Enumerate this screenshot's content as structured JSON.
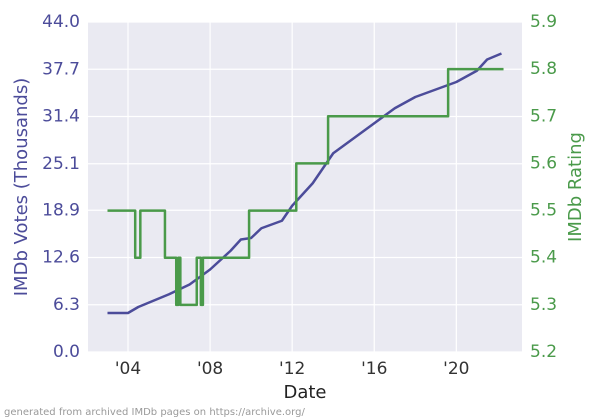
{
  "chart_data": {
    "type": "line",
    "xlabel": "Date",
    "ylabel": "IMDb Votes (Thousands)",
    "y2label": "IMDb Rating",
    "footnote": "generated from archived IMDb pages on https://archive.org/",
    "xlim": [
      2002.05,
      2023.2
    ],
    "xticks": [
      {
        "value": 2004,
        "label": "'04"
      },
      {
        "value": 2008,
        "label": "'08"
      },
      {
        "value": 2012,
        "label": "'12"
      },
      {
        "value": 2016,
        "label": "'16"
      },
      {
        "value": 2020,
        "label": "'20"
      }
    ],
    "ylim": [
      0,
      44
    ],
    "yticks": [
      {
        "value": 0,
        "label": "0.0"
      },
      6.3,
      12.6,
      18.9,
      25.1,
      31.4,
      37.7,
      {
        "value": 44,
        "label": "44.0"
      }
    ],
    "y2lim": [
      5.2,
      5.9
    ],
    "y2ticks": [
      5.2,
      5.3,
      5.4,
      5.5,
      5.6,
      5.7,
      5.8,
      5.9
    ],
    "grid": true,
    "series": [
      {
        "color": "#4c4c9a",
        "axis": "y",
        "x": [
          2003.0,
          2004.0,
          2004.5,
          2006.0,
          2007.0,
          2008.0,
          2009.0,
          2009.5,
          2010.0,
          2010.5,
          2011.5,
          2012.0,
          2012.5,
          2013.0,
          2013.5,
          2014.0,
          2015.0,
          2016.0,
          2017.0,
          2018.0,
          2019.0,
          2020.0,
          2021.0,
          2021.5,
          2022.2
        ],
        "values": [
          5.2,
          5.2,
          6.0,
          7.7,
          9.0,
          11.0,
          13.5,
          15.0,
          15.2,
          16.5,
          17.5,
          19.5,
          21.0,
          22.5,
          24.5,
          26.5,
          28.5,
          30.5,
          32.5,
          34.0,
          35.0,
          36.0,
          37.5,
          39.0,
          39.8
        ]
      },
      {
        "color": "#4a9a4a",
        "axis": "y2",
        "x": [
          2003,
          2004.35,
          2004.35,
          2004.6,
          2004.6,
          2005.8,
          2005.8,
          2006.35,
          2006.35,
          2006.45,
          2006.45,
          2006.55,
          2006.55,
          2007.35,
          2007.35,
          2007.55,
          2007.55,
          2007.65,
          2007.65,
          2009.9,
          2009.9,
          2012.2,
          2012.2,
          2013.75,
          2013.75,
          2019.6,
          2019.6,
          2022.3
        ],
        "values": [
          5.5,
          5.5,
          5.4,
          5.4,
          5.5,
          5.5,
          5.4,
          5.4,
          5.3,
          5.3,
          5.4,
          5.4,
          5.3,
          5.3,
          5.4,
          5.4,
          5.3,
          5.3,
          5.4,
          5.4,
          5.5,
          5.5,
          5.6,
          5.6,
          5.7,
          5.7,
          5.8,
          5.8
        ]
      }
    ]
  }
}
